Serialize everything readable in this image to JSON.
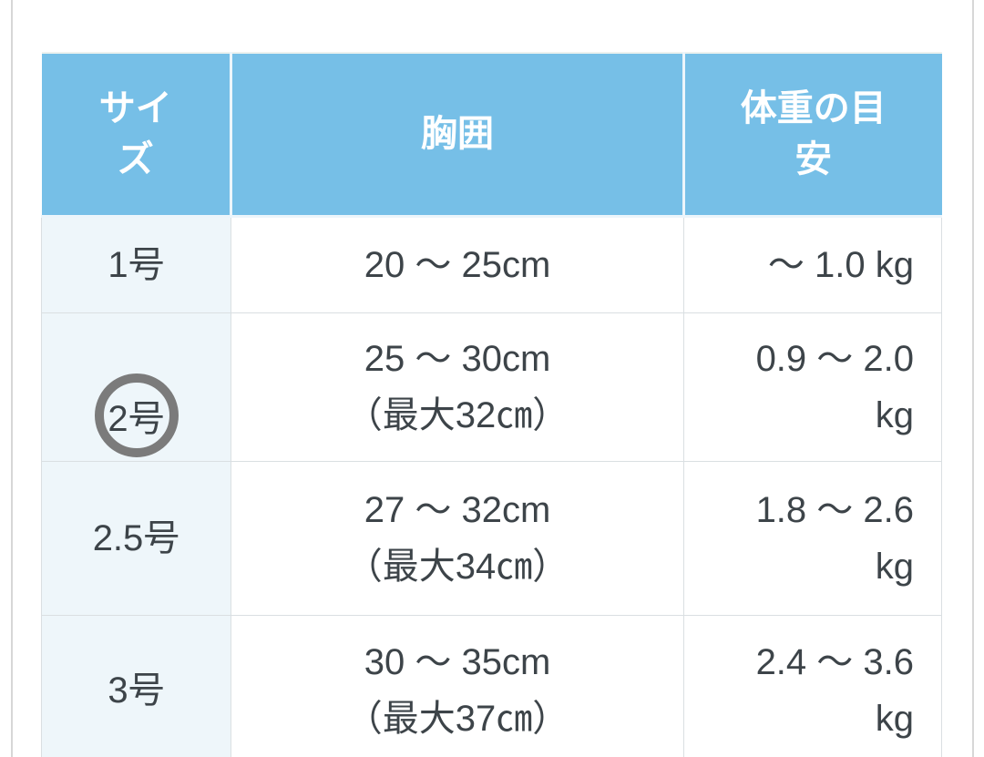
{
  "colors": {
    "header_bg": "#76bfe7",
    "header_text": "#ffffff",
    "size_column_bg": "#eef6fa",
    "cell_border": "#dadfe2",
    "body_text": "#3d4449",
    "annotation_circle": "#7b7b7b",
    "page_edge_line": "#d7d7d7"
  },
  "table": {
    "headers": [
      {
        "label": "サイ\nズ"
      },
      {
        "label": "胸囲"
      },
      {
        "label": "体重の目\n安"
      }
    ],
    "rows": [
      {
        "size": "1号",
        "circled": false,
        "chest": "20 〜 25cm",
        "weight": "〜 1.0 kg"
      },
      {
        "size": "2号",
        "circled": true,
        "chest": "25 〜 30cm\n（最大32㎝）",
        "weight": "0.9 〜 2.0\nkg"
      },
      {
        "size": "2.5号",
        "circled": false,
        "chest": "27 〜 32cm\n（最大34㎝）",
        "weight": "1.8 〜 2.6\nkg"
      },
      {
        "size": "3号",
        "circled": false,
        "chest": "30 〜 35cm\n（最大37㎝）",
        "weight": "2.4 〜 3.6\nkg"
      }
    ]
  }
}
